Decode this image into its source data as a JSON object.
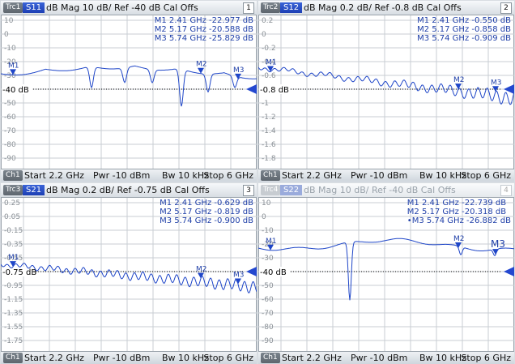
{
  "colors": {
    "trace": "#1f46c8",
    "accent": "#2448cf",
    "grid": "#c9ced3",
    "ref_line": "#000000"
  },
  "panels": [
    {
      "trc_tag": "Trc1",
      "trace_name": "S11",
      "info": "dB Mag  10 dB/ Ref -40 dB  Cal Offs",
      "number": "1",
      "ref_label": "-40 dB",
      "ch_tag": "Ch1",
      "start": "Start  2.2 GHz",
      "pwr": "Pwr  -10 dBm",
      "bw": "Bw  10 kHz",
      "stop": "Stop  6 GHz",
      "markers": [
        "M1  2.41 GHz  -22.977 dB",
        "M2  5.17 GHz  -20.588 dB",
        "M3  5.74 GHz  -25.829 dB"
      ],
      "marker_labels": [
        "M1",
        "M2",
        "M3"
      ],
      "y_ticks": [
        "10",
        "0",
        "-10",
        "-20",
        "-30",
        "-40",
        "-50",
        "-60",
        "-70",
        "-80",
        "-90"
      ]
    },
    {
      "trc_tag": "Trc2",
      "trace_name": "S12",
      "info": "dB Mag  0.2 dB/ Ref -0.8 dB  Cal Offs",
      "number": "2",
      "ref_label": "-0.8 dB",
      "ch_tag": "Ch1",
      "start": "Start  2.2 GHz",
      "pwr": "Pwr  -10 dBm",
      "bw": "Bw  10 kHz",
      "stop": "Stop  6 GHz",
      "markers": [
        "M1  2.41 GHz  -0.550 dB",
        "M2  5.17 GHz  -0.858 dB",
        "M3  5.74 GHz  -0.909 dB"
      ],
      "marker_labels": [
        "M1",
        "M2",
        "M3"
      ],
      "y_ticks": [
        "0.2",
        "0",
        "-0.2",
        "-0.4",
        "-0.6",
        "-0.8",
        "-1",
        "-1.2",
        "-1.4",
        "-1.6",
        "-1.8"
      ]
    },
    {
      "trc_tag": "Trc3",
      "trace_name": "S21",
      "info": "dB Mag  0.2 dB/ Ref -0.75 dB  Cal Offs",
      "number": "3",
      "ref_label": "-0.75 dB",
      "ch_tag": "Ch1",
      "start": "Start  2.2 GHz",
      "pwr": "Pwr  -10 dBm",
      "bw": "Bw  10 kHz",
      "stop": "Stop  6 GHz",
      "markers": [
        "M1  2.41 GHz  -0.629 dB",
        "M2  5.17 GHz  -0.819 dB",
        "M3  5.74 GHz  -0.900 dB"
      ],
      "marker_labels": [
        "M1",
        "M2",
        "M3"
      ],
      "y_ticks": [
        "0.25",
        "0.05",
        "-0.15",
        "-0.35",
        "-0.55",
        "-0.75",
        "-0.95",
        "-1.15",
        "-1.35",
        "-1.55",
        "-1.75"
      ]
    },
    {
      "trc_tag": "Trc4",
      "trace_name": "S22",
      "info": "dB Mag  10 dB/ Ref -40 dB  Cal Offs",
      "number": "4",
      "ref_label": "-40 dB",
      "ch_tag": "Ch1",
      "start": "Start  2.2 GHz",
      "pwr": "Pwr  -10 dBm",
      "bw": "Bw  10 kHz",
      "stop": "Stop  6 GHz",
      "markers": [
        "M1  2.41 GHz  -22.739 dB",
        "M2  5.17 GHz  -20.318 dB",
        "•M3  5.74 GHz  -26.882 dB"
      ],
      "marker_labels": [
        "M1",
        "M2",
        "M3"
      ],
      "y_ticks": [
        "10",
        "0",
        "-10",
        "-20",
        "-30",
        "-40",
        "-50",
        "-60",
        "-70",
        "-80",
        "-90"
      ]
    }
  ]
}
